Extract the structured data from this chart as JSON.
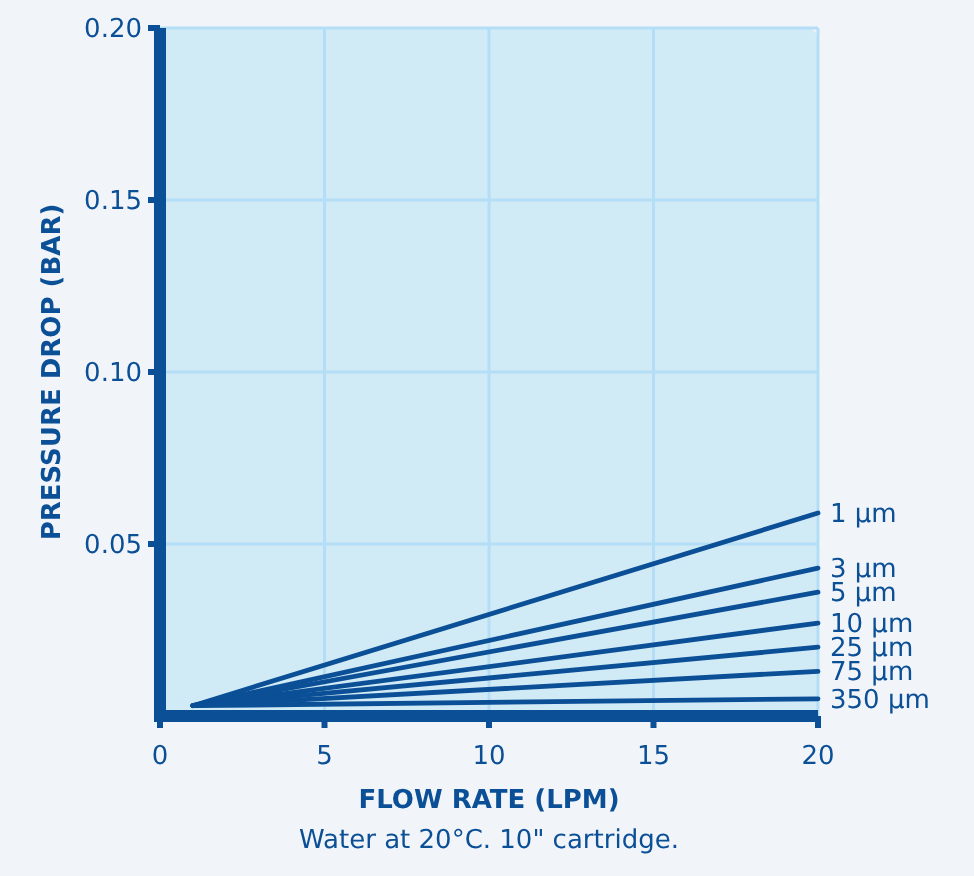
{
  "chart_data": {
    "type": "line",
    "xlabel": "FLOW RATE (LPM)",
    "ylabel": "PRESSURE DROP (BAR)",
    "annotations": [
      "Water at 20°C. 10\" cartridge."
    ],
    "xlim": [
      0,
      20
    ],
    "ylim": [
      0,
      0.2
    ],
    "xticks": [
      0,
      5,
      10,
      15,
      20
    ],
    "yticks": [
      0.05,
      {
        "value": 0.1,
        "label": "0.10"
      },
      0.15,
      {
        "value": 0.2,
        "label": "0.20"
      }
    ],
    "grid": true,
    "legend": false,
    "marker": "none",
    "line_style": "solid",
    "x": [
      1,
      20
    ],
    "series": [
      {
        "name": "1 µm",
        "color": "#0b4f96",
        "values": [
          0.003,
          0.059
        ]
      },
      {
        "name": "3 µm",
        "color": "#0b4f96",
        "values": [
          0.003,
          0.043
        ]
      },
      {
        "name": "5 µm",
        "color": "#0b4f96",
        "values": [
          0.003,
          0.036
        ]
      },
      {
        "name": "10 µm",
        "color": "#0b4f96",
        "values": [
          0.003,
          0.027
        ]
      },
      {
        "name": "25 µm",
        "color": "#0b4f96",
        "values": [
          0.003,
          0.02
        ]
      },
      {
        "name": "75 µm",
        "color": "#0b4f96",
        "values": [
          0.003,
          0.013
        ]
      },
      {
        "name": "350 µm",
        "color": "#0b4f96",
        "values": [
          0.003,
          0.005
        ]
      }
    ]
  }
}
